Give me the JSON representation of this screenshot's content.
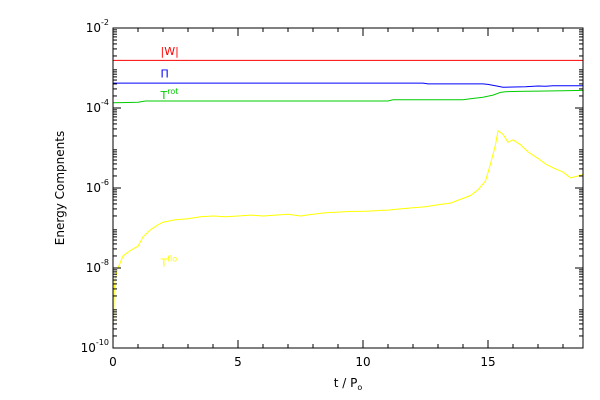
{
  "chart_data": {
    "type": "line",
    "xlabel": "t / P",
    "xlabel_sub": "o",
    "ylabel": "Energy Compnents",
    "xlim": [
      0,
      18.8
    ],
    "ylim": [
      1e-10,
      0.01
    ],
    "y_scale": "log",
    "grid": false,
    "x_ticks": [
      0,
      5,
      10,
      15
    ],
    "x_minor_ticks": [
      1,
      2,
      3,
      4,
      6,
      7,
      8,
      9,
      11,
      12,
      13,
      14,
      16,
      17,
      18
    ],
    "y_ticks": [
      {
        "value": 1e-10,
        "base": "10",
        "exp": "-10"
      },
      {
        "value": 1e-08,
        "base": "10",
        "exp": "-8"
      },
      {
        "value": 1e-06,
        "base": "10",
        "exp": "-6"
      },
      {
        "value": 0.0001,
        "base": "10",
        "exp": "-4"
      },
      {
        "value": 0.01,
        "base": "10",
        "exp": "-2"
      }
    ],
    "series": [
      {
        "name": "|W|",
        "label_main": "|W|",
        "label_sup": "",
        "color": "#ff0000",
        "label_at": {
          "x": 1.9,
          "y": 0.0021
        },
        "x": [
          0,
          18.8
        ],
        "y": [
          0.00155,
          0.00155
        ]
      },
      {
        "name": "Π",
        "label_main": "Π",
        "label_sup": "",
        "color": "#0000ff",
        "label_at": {
          "x": 1.9,
          "y": 0.00058
        },
        "x": [
          0,
          12.4,
          12.6,
          14.8,
          15.0,
          15.4,
          15.6,
          16.5,
          17.0,
          17.3,
          17.6,
          18.8
        ],
        "y": [
          0.00042,
          0.00042,
          0.0004,
          0.0004,
          0.00039,
          0.00035,
          0.00033,
          0.00034,
          0.000355,
          0.00035,
          0.00036,
          0.00036
        ]
      },
      {
        "name": "T rot",
        "label_main": "T",
        "label_sup": "rot",
        "color": "#00cc00",
        "label_at": {
          "x": 1.9,
          "y": 0.00017
        },
        "x": [
          0,
          1.0,
          1.3,
          11.0,
          11.2,
          14.0,
          14.3,
          14.8,
          15.2,
          15.5,
          15.7,
          16.2,
          17.0,
          18.0,
          18.8
        ],
        "y": [
          0.000135,
          0.00014,
          0.00015,
          0.00015,
          0.00016,
          0.00016,
          0.00017,
          0.000185,
          0.00021,
          0.000245,
          0.000255,
          0.00026,
          0.000265,
          0.00027,
          0.000275
        ]
      },
      {
        "name": "T flo",
        "label_main": "T",
        "label_sup": "flo",
        "color": "#ffff00",
        "label_at": {
          "x": 1.9,
          "y": 1.1e-08
        },
        "x": [
          0,
          0.05,
          0.1,
          0.2,
          0.4,
          0.6,
          0.8,
          1.0,
          1.2,
          1.5,
          1.8,
          2.0,
          2.5,
          3.0,
          3.5,
          4.0,
          4.5,
          5.0,
          5.5,
          6.0,
          6.5,
          7.0,
          7.5,
          8.0,
          8.5,
          9.0,
          9.5,
          10.0,
          10.5,
          11.0,
          11.5,
          12.0,
          12.5,
          13.0,
          13.5,
          14.0,
          14.3,
          14.6,
          14.9,
          15.1,
          15.3,
          15.4,
          15.6,
          15.8,
          16.0,
          16.3,
          16.6,
          17.0,
          17.3,
          17.6,
          18.0,
          18.3,
          18.6,
          18.8
        ],
        "y": [
          1e-10,
          3e-09,
          6e-09,
          1e-08,
          2e-08,
          2.5e-08,
          3e-08,
          3.5e-08,
          6e-08,
          9e-08,
          1.2e-07,
          1.4e-07,
          1.6e-07,
          1.7e-07,
          1.9e-07,
          2e-07,
          1.9e-07,
          2e-07,
          2.1e-07,
          2e-07,
          2.1e-07,
          2.2e-07,
          2e-07,
          2.2e-07,
          2.4e-07,
          2.5e-07,
          2.6e-07,
          2.6e-07,
          2.7e-07,
          2.8e-07,
          3e-07,
          3.2e-07,
          3.4e-07,
          3.8e-07,
          4.2e-07,
          5.5e-07,
          6.5e-07,
          9e-07,
          1.5e-06,
          4e-06,
          1.2e-05,
          2.7e-05,
          2.2e-05,
          1.4e-05,
          1.6e-05,
          1.2e-05,
          8e-06,
          5.5e-06,
          4e-06,
          3.2e-06,
          2.5e-06,
          1.8e-06,
          2e-06,
          2.2e-06
        ]
      }
    ]
  }
}
